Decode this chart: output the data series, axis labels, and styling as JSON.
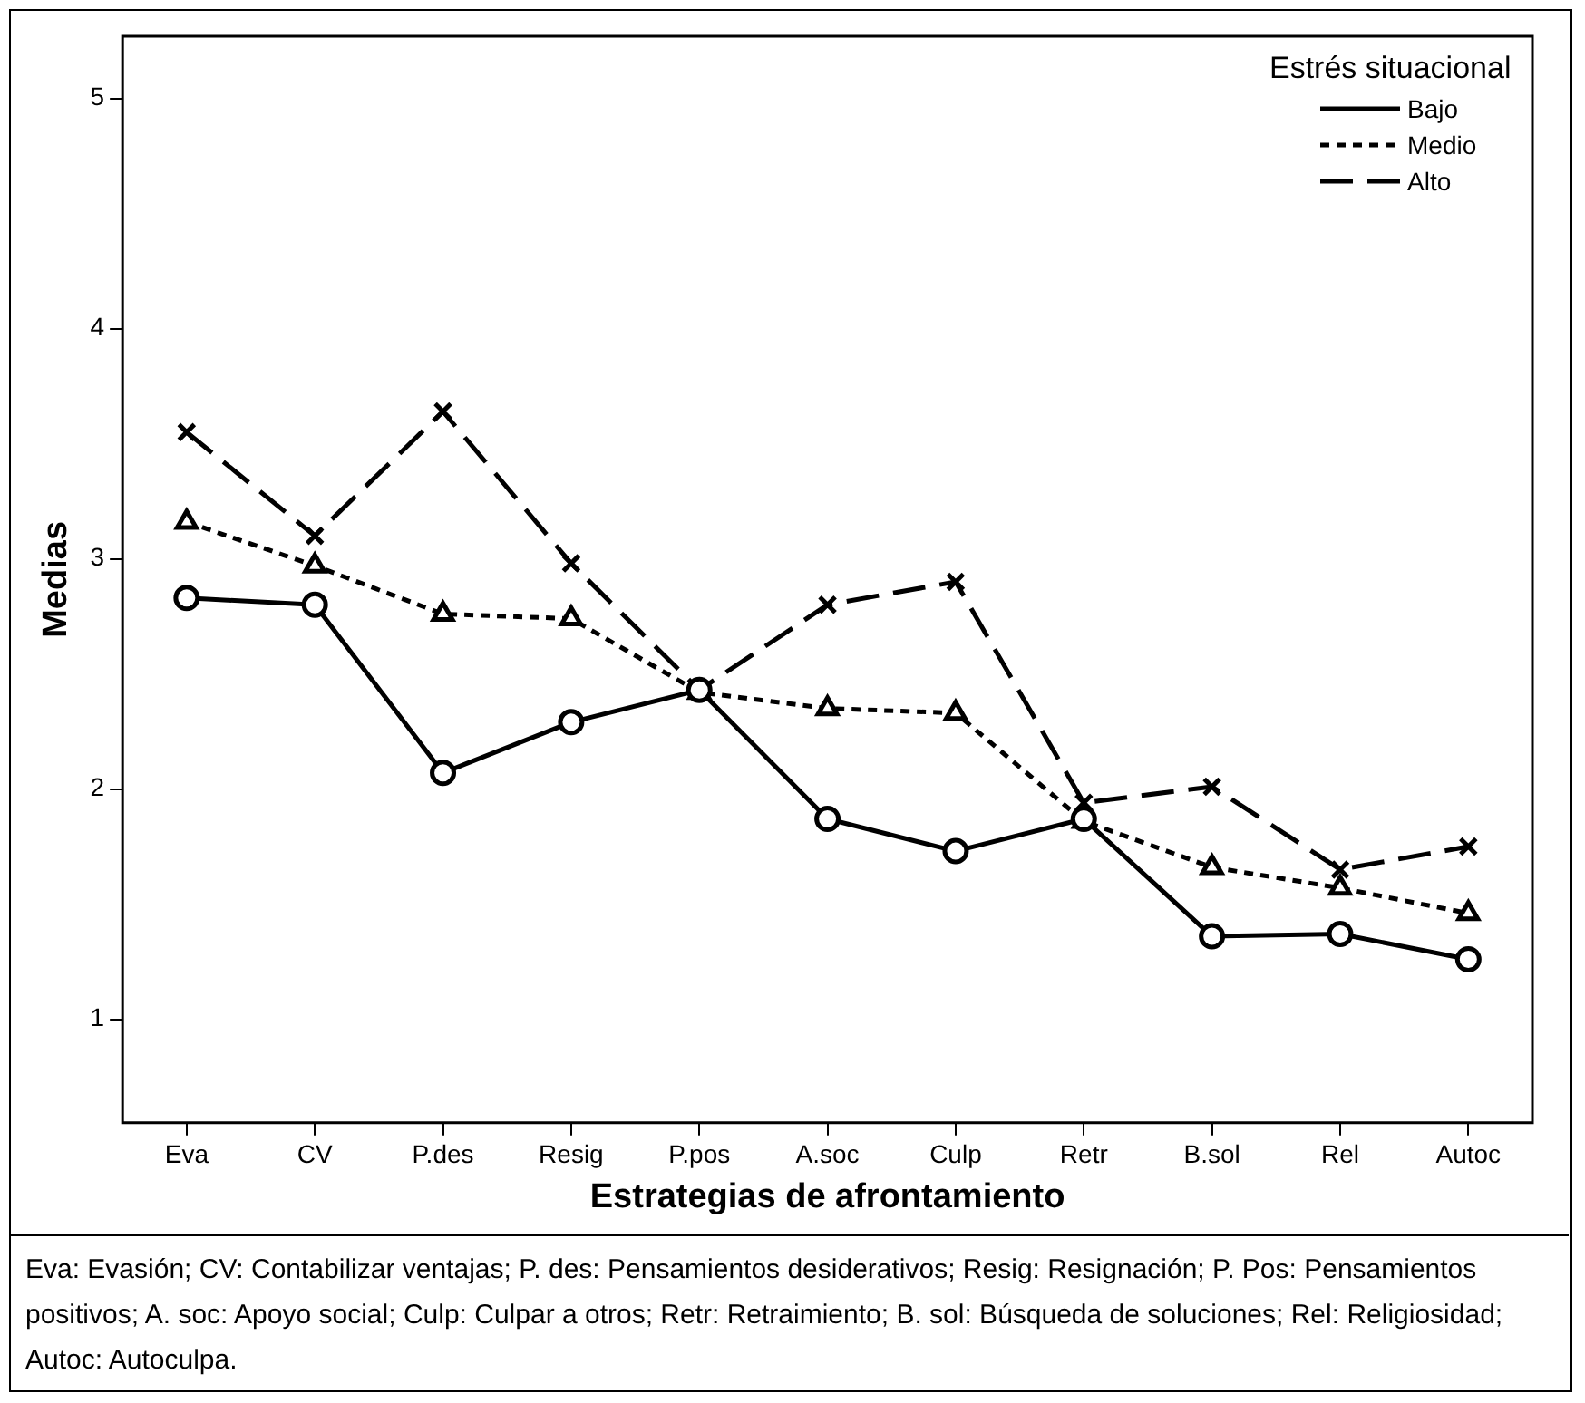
{
  "chart_data": {
    "type": "line",
    "xlabel": "Estrategias de afrontamiento",
    "ylabel": "Medias",
    "legend_title": "Estrés situacional",
    "legend": "top right",
    "grid": false,
    "categories": [
      "Eva",
      "CV",
      "P.des",
      "Resig",
      "P.pos",
      "A.soc",
      "Culp",
      "Retr",
      "B.sol",
      "Rel",
      "Autoc"
    ],
    "ylim": [
      0.55,
      5.27
    ],
    "yticks": [
      1,
      2,
      3,
      4,
      5
    ],
    "series": [
      {
        "name": "Bajo",
        "color": "#000000",
        "line_style": "solid",
        "marker": "circle",
        "values": [
          2.83,
          2.8,
          2.07,
          2.29,
          2.43,
          1.87,
          1.73,
          1.87,
          1.36,
          1.37,
          1.26
        ]
      },
      {
        "name": "Medio",
        "color": "#000000",
        "line_style": "dotted",
        "marker": "triangle",
        "values": [
          3.16,
          2.97,
          2.76,
          2.74,
          2.42,
          2.35,
          2.33,
          1.86,
          1.66,
          1.57,
          1.46
        ]
      },
      {
        "name": "Alto",
        "color": "#000000",
        "line_style": "dashed",
        "marker": "cross",
        "values": [
          3.55,
          3.1,
          3.64,
          2.98,
          2.43,
          2.8,
          2.9,
          1.94,
          2.01,
          1.65,
          1.75
        ]
      }
    ],
    "annotations": [
      "Eva: Evasión; CV: Contabilizar ventajas; P. des: Pensamientos desiderativos; Resig: Resignación; P. Pos: Pensamientos positivos; A. soc: Apoyo social; Culp: Culpar a otros; Retr: Retraimiento; B. sol: Búsqueda de soluciones; Rel: Religiosidad; Autoc: Autoculpa."
    ]
  }
}
